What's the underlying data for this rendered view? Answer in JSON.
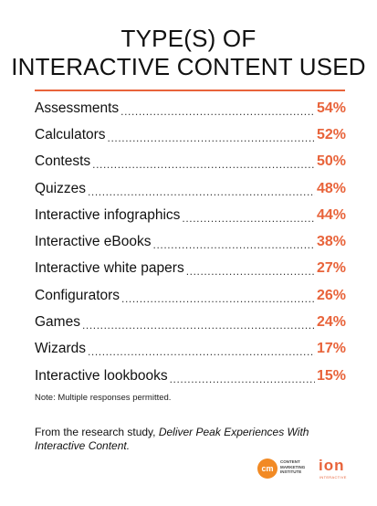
{
  "chart_data": {
    "type": "table",
    "title_lines": [
      "TYPE(S) OF",
      "INTERACTIVE CONTENT USED"
    ],
    "rows": [
      {
        "label": "Assessments",
        "value": "54%"
      },
      {
        "label": "Calculators",
        "value": "52%"
      },
      {
        "label": "Contests",
        "value": "50%"
      },
      {
        "label": "Quizzes",
        "value": "48%"
      },
      {
        "label": "Interactive infographics",
        "value": "44%"
      },
      {
        "label": "Interactive eBooks",
        "value": "38%"
      },
      {
        "label": "Interactive white papers",
        "value": "27%"
      },
      {
        "label": "Configurators",
        "value": "26%"
      },
      {
        "label": "Games",
        "value": "24%"
      },
      {
        "label": "Wizards",
        "value": "17%"
      },
      {
        "label": "Interactive lookbooks",
        "value": "15%"
      }
    ],
    "note": "Note: Multiple responses permitted."
  },
  "source": {
    "prefix": "From the research study, ",
    "study_title": "Deliver Peak Experiences With Interactive Content."
  },
  "logos": {
    "cmi_mark": "cm",
    "cmi_text": "CONTENT MARKETING INSTITUTE",
    "ion_mark": "ion",
    "ion_text": "INTERACTIVE"
  },
  "colors": {
    "accent": "#e8633a",
    "cmi_orange": "#f28a24"
  }
}
